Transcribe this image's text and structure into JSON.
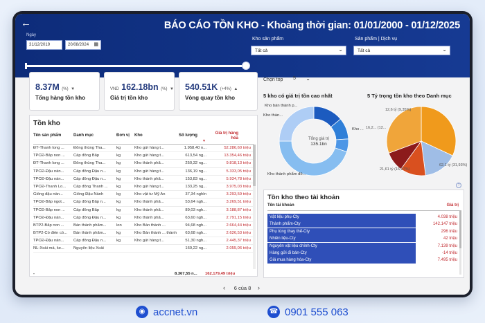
{
  "report": {
    "title": "BÁO CÁO TỒN KHO - Khoảng thời gian: 01/01/2000 - 01/12/2025",
    "date_label": "Ngày",
    "date_from": "31/12/2019",
    "date_to": "20/08/2024"
  },
  "filters": {
    "warehouse_label": "Kho sản phẩm",
    "warehouse_value": "Tất cả",
    "product_label": "Sản phẩm | Dịch vụ",
    "product_value": "Tất cả"
  },
  "kpis": [
    {
      "value": "8.37M",
      "unit": "(%)",
      "arrow": "▼",
      "label": "Tổng hàng tồn kho"
    },
    {
      "prefix": "VND",
      "value": "162.18bn",
      "unit": "(%)",
      "arrow": "▼",
      "label": "Giá trị tồn kho"
    },
    {
      "value": "540.51K",
      "unit": "(+4%)",
      "arrow": "▲",
      "label": "Vòng quay tồn kho"
    }
  ],
  "inventory_table": {
    "title": "Tồn kho",
    "columns": [
      "Tên sản phẩm",
      "Danh mục",
      "Đơn vị",
      "Kho",
      "Số lượng",
      "Giá trị hàng hóa"
    ],
    "rows": [
      [
        "ĐT-Thanh long ...",
        "Đông thùng Tha...",
        "kg",
        "Kho gửi hàng t...",
        "1.958,40 n...",
        "52.286,60 triệu"
      ],
      [
        "TPCĐ-Bắp non ...",
        "Cấp đông Bắp",
        "kg",
        "Kho gửi hàng t...",
        "613,54 ng...",
        "13.354,46 triệu"
      ],
      [
        "ĐT-Thanh long ...",
        "Đông thùng Tha...",
        "kg",
        "Kho thành phẩ...",
        "250,32 ng...",
        "9.818,13 triệu"
      ],
      [
        "TPCĐ-Đậu nàn...",
        "Cấp đông Đậu n...",
        "kg",
        "Kho gửi hàng t...",
        "136,19 ng...",
        "5.333,05 triệu"
      ],
      [
        "TPCĐ-Đậu nàn...",
        "Cấp đông Đậu n...",
        "kg",
        "Kho thành phẩ...",
        "153,83 ng...",
        "5.934,78 triệu"
      ],
      [
        "TPCĐ-Thanh Lo...",
        "Cấp đông Thanh ...",
        "kg",
        "Kho gửi hàng t...",
        "133,25 ng...",
        "3.975,03 triệu"
      ],
      [
        "Giống đậu nàn...",
        "Giống Đậu Nành",
        "kg",
        "Kho vật tư Mỹ An",
        "37,34 nghìn",
        "3.293,59 triệu"
      ],
      [
        "TPCĐ-Bắp ngot...",
        "Cấp đông Bắp n...",
        "kg",
        "Kho thành phẩ...",
        "53,64 ngh...",
        "3.269,51 triệu"
      ],
      [
        "TPCĐ-Bắp non ...",
        "Cấp đông Bắp",
        "kg",
        "Kho thành phẩ...",
        "89,03 ngh...",
        "3.188,87 triệu"
      ],
      [
        "TPCĐ-Đậu nàn...",
        "Cấp đông Đậu n...",
        "kg",
        "Kho thành phẩ...",
        "63,60 ngh...",
        "2.791,15 triệu"
      ],
      [
        "BTP2-Bắp non ...",
        "Bán thành phẩm...",
        "lon",
        "Kho Bán thành ...",
        "94,68 ngh...",
        "2.664,44 triệu"
      ],
      [
        "BTP2-Cồ điền cồ...",
        "Bán thành phẩm...",
        "kg",
        "Kho Bán thành ... thành phẩm",
        "63,68 ngh...",
        "2.626,53 triệu"
      ],
      [
        "TPCĐ-Đậu nàn...",
        "Cấp đông Đậu n...",
        "kg",
        "Kho gửi hàng t...",
        "51,30 ngh...",
        "2.445,37 triệu"
      ],
      [
        "NL-Xoài má, ke...",
        "Nguyên liệu Xoài",
        "",
        "",
        "169,22 ng...",
        "2.055,06 triệu"
      ]
    ],
    "total_label": "-",
    "total_qty": "8.367,55 n...",
    "total_value": "162.179,49 triệu"
  },
  "top_selector": {
    "label": "Chọn top",
    "value": "5"
  },
  "donut": {
    "title": "5 kho có giá trị tồn cao nhất",
    "center_label": "Tổng giá trị",
    "center_value": "135.1bn",
    "labels": [
      "Kho bán thành p...",
      "Kho thàn...",
      "Kho ...",
      "Kho thành phẩm đô..."
    ]
  },
  "pie": {
    "title": "5 Tỷ trọng tồn kho theo Danh mục",
    "labels": [
      "12,6 tỷ (9,35%)",
      "16,2... (12...",
      "21,61 tỷ (16,07%)",
      "62,1 tỷ (31,93%)"
    ]
  },
  "chart_data": [
    {
      "type": "pie",
      "title": "5 kho có giá trị tồn cao nhất",
      "center_label": "Tổng giá trị",
      "center_value": "135.1bn",
      "categories": [
        "Kho bán thành p...",
        "Kho thàn...",
        "Kho ...",
        "Kho thành phẩm đô...",
        ""
      ],
      "values": [
        14,
        10,
        6,
        45,
        25
      ],
      "colors": [
        "#1c5bbf",
        "#2f7fd8",
        "#4d96e6",
        "#86bdf0",
        "#aecdf5"
      ]
    },
    {
      "type": "pie",
      "title": "5 Tỷ trọng tồn kho theo Danh mục",
      "categories": [
        "",
        "",
        "",
        "",
        ""
      ],
      "values": [
        31.93,
        16.07,
        12.0,
        9.35,
        30.65
      ],
      "display_labels": [
        "62,1 tỷ (31,93%)",
        "21,61 tỷ (16,07%)",
        "16,2... (12...",
        "12,6 tỷ (9,35%)",
        ""
      ],
      "colors": [
        "#f09a1c",
        "#9fbde6",
        "#d9501f",
        "#8c1b1b",
        "#f0a53a"
      ]
    }
  ],
  "accounts": {
    "title": "Tồn kho theo tài khoản",
    "col_name": "Tên tài khoản",
    "col_value": "Giá trị",
    "rows": [
      [
        "Vật liệu phụ-Cty",
        "4.038 triệu"
      ],
      [
        "Thành phẩm-Cty",
        "142.147 triệu"
      ],
      [
        "Phụ tùng thay thế-Cty",
        "296 triệu"
      ],
      [
        "Nhiên liệu-Cty",
        "42 triệu"
      ],
      [
        "Nguyên vật liệu chính-Cty",
        "7.139 triệu"
      ],
      [
        "Hàng gửi đi bán-Cty",
        "-14 triệu"
      ],
      [
        "Giá mua hàng hóa-Cty",
        "7.495 triệu"
      ]
    ]
  },
  "pager": {
    "text": "6 của 8",
    "prev": "‹",
    "next": "›"
  },
  "footer": {
    "website": "accnet.vn",
    "phone": "0901 555 063"
  }
}
